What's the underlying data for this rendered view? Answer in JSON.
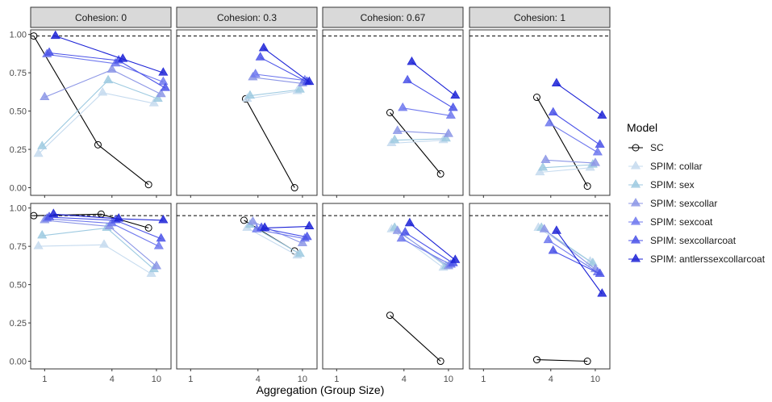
{
  "chart_data": {
    "type": "line",
    "xlabel": "Aggregation (Group Size)",
    "ylabel": "",
    "x_scale": "log",
    "xlim": [
      0.75,
      13.5
    ],
    "ylim": [
      -0.05,
      1.03
    ],
    "x_ticks": [
      1,
      4,
      10
    ],
    "y_ticks": [
      0.0,
      0.25,
      0.5,
      0.75,
      1.0
    ],
    "y_tick_labels": [
      "0.00",
      "0.25",
      "0.50",
      "0.75",
      "1.00"
    ],
    "legend": {
      "title": "Model",
      "position": "right",
      "entries": [
        "SC",
        "SPIM: collar",
        "SPIM: sex",
        "SPIM: sexcollar",
        "SPIM: sexcoat",
        "SPIM: sexcollarcoat",
        "SPIM: antlerssexcollarcoat"
      ]
    },
    "series_styles": [
      {
        "color": "#000000",
        "marker": "circle"
      },
      {
        "color": "#c6dbef",
        "marker": "triangle"
      },
      {
        "color": "#9ecae1",
        "marker": "triangle"
      },
      {
        "color": "#8c96e6",
        "marker": "triangle"
      },
      {
        "color": "#6f78ee",
        "marker": "triangle"
      },
      {
        "color": "#4a52e8",
        "marker": "triangle"
      },
      {
        "color": "#1c22d6",
        "marker": "triangle"
      }
    ],
    "columns": [
      "Cohesion: 0",
      "Cohesion: 0.3",
      "Cohesion: 0.67",
      "Cohesion: 1"
    ],
    "reference_lines": [
      0.99,
      0.95
    ],
    "panels": [
      [
        [
          [
            [
              0.8,
              0.99
            ],
            [
              3.0,
              0.28
            ],
            [
              8.5,
              0.02
            ]
          ]
        ],
        [
          [
            [
              0.88,
              0.22
            ],
            [
              3.3,
              0.62
            ],
            [
              9.5,
              0.55
            ]
          ]
        ],
        [
          [
            [
              0.95,
              0.27
            ],
            [
              3.7,
              0.7
            ],
            [
              10.3,
              0.58
            ]
          ]
        ],
        [
          [
            [
              1.0,
              0.59
            ],
            [
              4.0,
              0.77
            ],
            [
              11.0,
              0.61
            ]
          ]
        ],
        [
          [
            [
              1.05,
              0.87
            ],
            [
              4.3,
              0.81
            ],
            [
              11.5,
              0.69
            ]
          ]
        ],
        [
          [
            [
              1.1,
              0.88
            ],
            [
              4.6,
              0.83
            ],
            [
              12.0,
              0.65
            ]
          ]
        ],
        [
          [
            [
              1.25,
              0.99
            ],
            [
              5.0,
              0.84
            ],
            [
              11.5,
              0.75
            ]
          ]
        ]
      ],
      [
        [
          [
            [
              3.1,
              0.58
            ],
            [
              8.5,
              0.0
            ]
          ]
        ],
        [
          [
            [
              3.2,
              0.58
            ],
            [
              9.0,
              0.63
            ]
          ]
        ],
        [
          [
            [
              3.4,
              0.6
            ],
            [
              9.5,
              0.64
            ]
          ]
        ],
        [
          [
            [
              3.6,
              0.72
            ],
            [
              10.0,
              0.68
            ]
          ]
        ],
        [
          [
            [
              3.8,
              0.74
            ],
            [
              10.5,
              0.7
            ]
          ]
        ],
        [
          [
            [
              4.2,
              0.85
            ],
            [
              11.0,
              0.69
            ]
          ]
        ],
        [
          [
            [
              4.5,
              0.91
            ],
            [
              11.5,
              0.69
            ]
          ]
        ]
      ],
      [
        [
          [
            [
              3.0,
              0.49
            ],
            [
              8.5,
              0.09
            ]
          ]
        ],
        [
          [
            [
              3.1,
              0.29
            ],
            [
              9.0,
              0.31
            ]
          ]
        ],
        [
          [
            [
              3.3,
              0.31
            ],
            [
              9.5,
              0.32
            ]
          ]
        ],
        [
          [
            [
              3.5,
              0.37
            ],
            [
              10.0,
              0.35
            ]
          ]
        ],
        [
          [
            [
              3.9,
              0.52
            ],
            [
              10.5,
              0.47
            ]
          ]
        ],
        [
          [
            [
              4.3,
              0.7
            ],
            [
              11.0,
              0.52
            ]
          ]
        ],
        [
          [
            [
              4.7,
              0.82
            ],
            [
              11.5,
              0.6
            ]
          ]
        ]
      ],
      [
        [
          [
            [
              3.0,
              0.59
            ],
            [
              8.5,
              0.01
            ]
          ]
        ],
        [
          [
            [
              3.2,
              0.1
            ],
            [
              9.0,
              0.13
            ]
          ]
        ],
        [
          [
            [
              3.4,
              0.13
            ],
            [
              9.5,
              0.15
            ]
          ]
        ],
        [
          [
            [
              3.6,
              0.18
            ],
            [
              10.0,
              0.16
            ]
          ]
        ],
        [
          [
            [
              3.9,
              0.42
            ],
            [
              10.5,
              0.23
            ]
          ]
        ],
        [
          [
            [
              4.2,
              0.49
            ],
            [
              11.0,
              0.28
            ]
          ]
        ],
        [
          [
            [
              4.5,
              0.68
            ],
            [
              11.5,
              0.47
            ]
          ]
        ]
      ],
      [
        [
          [
            [
              0.8,
              0.95
            ],
            [
              3.2,
              0.96
            ],
            [
              8.5,
              0.87
            ]
          ]
        ],
        [
          [
            [
              0.88,
              0.75
            ],
            [
              3.4,
              0.76
            ],
            [
              9.0,
              0.57
            ]
          ]
        ],
        [
          [
            [
              0.95,
              0.82
            ],
            [
              3.6,
              0.87
            ],
            [
              9.5,
              0.6
            ]
          ]
        ],
        [
          [
            [
              1.0,
              0.92
            ],
            [
              3.8,
              0.88
            ],
            [
              10.0,
              0.62
            ]
          ]
        ],
        [
          [
            [
              1.05,
              0.93
            ],
            [
              4.0,
              0.9
            ],
            [
              10.5,
              0.75
            ]
          ]
        ],
        [
          [
            [
              1.1,
              0.94
            ],
            [
              4.3,
              0.92
            ],
            [
              11.0,
              0.8
            ]
          ]
        ],
        [
          [
            [
              1.2,
              0.96
            ],
            [
              4.6,
              0.93
            ],
            [
              11.5,
              0.92
            ]
          ]
        ]
      ],
      [
        [
          [
            [
              3.0,
              0.92
            ],
            [
              8.5,
              0.72
            ]
          ]
        ],
        [
          [
            [
              3.2,
              0.87
            ],
            [
              9.0,
              0.69
            ]
          ]
        ],
        [
          [
            [
              3.4,
              0.89
            ],
            [
              9.5,
              0.7
            ]
          ]
        ],
        [
          [
            [
              3.6,
              0.91
            ],
            [
              10.0,
              0.77
            ]
          ]
        ],
        [
          [
            [
              3.9,
              0.86
            ],
            [
              10.5,
              0.8
            ]
          ]
        ],
        [
          [
            [
              4.3,
              0.87
            ],
            [
              11.0,
              0.81
            ]
          ]
        ],
        [
          [
            [
              4.6,
              0.87
            ],
            [
              11.5,
              0.88
            ]
          ]
        ]
      ],
      [
        [
          [
            [
              3.0,
              0.3
            ],
            [
              8.5,
              0.0
            ]
          ]
        ],
        [
          [
            [
              3.1,
              0.86
            ],
            [
              9.0,
              0.61
            ]
          ]
        ],
        [
          [
            [
              3.3,
              0.87
            ],
            [
              9.5,
              0.62
            ]
          ]
        ],
        [
          [
            [
              3.5,
              0.85
            ],
            [
              10.0,
              0.62
            ]
          ]
        ],
        [
          [
            [
              3.8,
              0.8
            ],
            [
              10.5,
              0.63
            ]
          ]
        ],
        [
          [
            [
              4.1,
              0.84
            ],
            [
              11.0,
              0.64
            ]
          ]
        ],
        [
          [
            [
              4.5,
              0.9
            ],
            [
              11.5,
              0.66
            ]
          ]
        ]
      ],
      [
        [
          [
            [
              3.0,
              0.01
            ],
            [
              8.5,
              0.0
            ]
          ]
        ],
        [
          [
            [
              3.1,
              0.87
            ],
            [
              9.0,
              0.65
            ]
          ]
        ],
        [
          [
            [
              3.3,
              0.87
            ],
            [
              9.5,
              0.64
            ]
          ]
        ],
        [
          [
            [
              3.5,
              0.86
            ],
            [
              10.0,
              0.6
            ]
          ]
        ],
        [
          [
            [
              3.8,
              0.79
            ],
            [
              10.5,
              0.58
            ]
          ]
        ],
        [
          [
            [
              4.2,
              0.72
            ],
            [
              11.0,
              0.57
            ]
          ]
        ],
        [
          [
            [
              4.5,
              0.85
            ],
            [
              11.5,
              0.44
            ]
          ]
        ]
      ]
    ]
  }
}
